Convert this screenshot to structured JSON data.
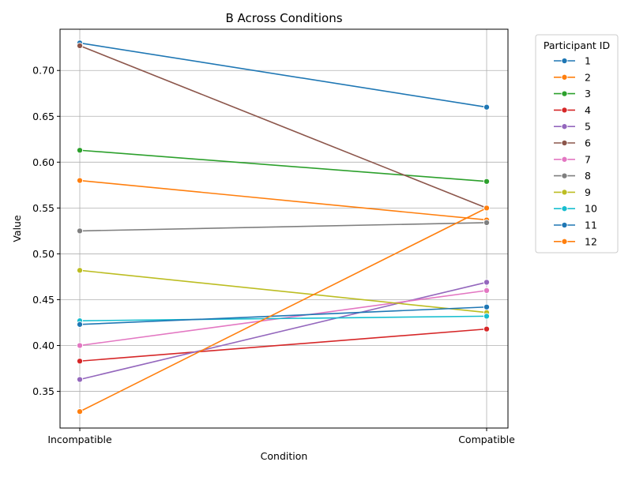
{
  "chart_data": {
    "type": "line",
    "title": "B Across Conditions",
    "xlabel": "Condition",
    "ylabel": "Value",
    "categories": [
      "Incompatible",
      "Compatible"
    ],
    "ylim": [
      0.31,
      0.745
    ],
    "yticks": [
      0.35,
      0.4,
      0.45,
      0.5,
      0.55,
      0.6,
      0.65,
      0.7
    ],
    "ytick_labels": [
      "0.35",
      "0.40",
      "0.45",
      "0.50",
      "0.55",
      "0.60",
      "0.65",
      "0.70"
    ],
    "grid": true,
    "legend": {
      "title": "Participant ID",
      "placement": "outside-right"
    },
    "series": [
      {
        "name": "1",
        "color": "#1f77b4",
        "values": [
          0.73,
          0.66
        ]
      },
      {
        "name": "2",
        "color": "#ff7f0e",
        "values": [
          0.58,
          0.537
        ]
      },
      {
        "name": "3",
        "color": "#2ca02c",
        "values": [
          0.613,
          0.579
        ]
      },
      {
        "name": "4",
        "color": "#d62728",
        "values": [
          0.383,
          0.418
        ]
      },
      {
        "name": "5",
        "color": "#9467bd",
        "values": [
          0.363,
          0.469
        ]
      },
      {
        "name": "6",
        "color": "#8c564b",
        "values": [
          0.727,
          0.55
        ]
      },
      {
        "name": "7",
        "color": "#e377c2",
        "values": [
          0.4,
          0.46
        ]
      },
      {
        "name": "8",
        "color": "#7f7f7f",
        "values": [
          0.525,
          0.534
        ]
      },
      {
        "name": "9",
        "color": "#bcbd22",
        "values": [
          0.482,
          0.436
        ]
      },
      {
        "name": "10",
        "color": "#17becf",
        "values": [
          0.427,
          0.432
        ]
      },
      {
        "name": "11",
        "color": "#1f77b4",
        "values": [
          0.423,
          0.442
        ]
      },
      {
        "name": "12",
        "color": "#ff7f0e",
        "values": [
          0.328,
          0.55
        ]
      }
    ]
  }
}
